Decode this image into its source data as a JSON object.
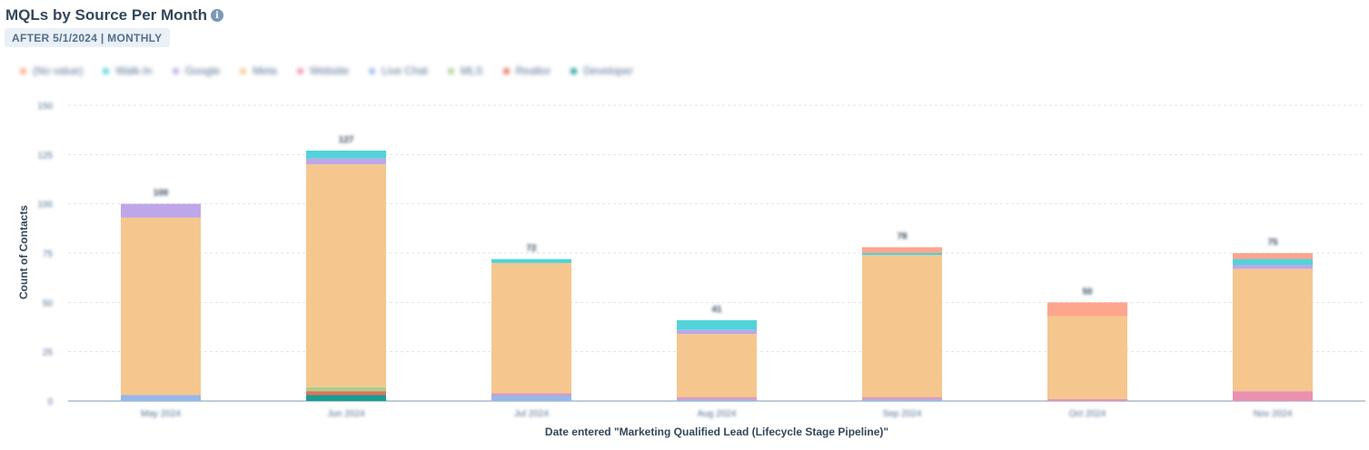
{
  "header": {
    "title": "MQLs by Source Per Month",
    "filter_badge": "AFTER 5/1/2024 | MONTHLY",
    "info_icon": "info-icon"
  },
  "chart_data": {
    "type": "bar",
    "stacked": true,
    "xlabel": "Date entered \"Marketing Qualified Lead (Lifecycle Stage Pipeline)\"",
    "ylabel": "Count of Contacts",
    "ylim": [
      0,
      150
    ],
    "yticks": [
      0,
      25,
      50,
      75,
      100,
      125,
      150
    ],
    "grid": true,
    "legend_position": "top-left",
    "categories": [
      "May 2024",
      "Jun 2024",
      "Jul 2024",
      "Aug 2024",
      "Sep 2024",
      "Oct 2024",
      "Nov 2024"
    ],
    "totals": [
      100,
      127,
      72,
      41,
      78,
      50,
      75
    ],
    "series": [
      {
        "name": "Developer",
        "color": "#1a9c92",
        "values": [
          0,
          3,
          0,
          0,
          0,
          0,
          0
        ]
      },
      {
        "name": "Realtor",
        "color": "#e0735a",
        "values": [
          0,
          2,
          0,
          0,
          0,
          0,
          0
        ]
      },
      {
        "name": "MLS",
        "color": "#a8d08d",
        "values": [
          0,
          2,
          0,
          0,
          0,
          0,
          0
        ]
      },
      {
        "name": "Live Chat",
        "color": "#97b7ea",
        "values": [
          3,
          0,
          3,
          1,
          1,
          0,
          0
        ]
      },
      {
        "name": "Website",
        "color": "#ea90b1",
        "values": [
          0,
          0,
          1,
          1,
          1,
          1,
          5
        ]
      },
      {
        "name": "Meta",
        "color": "#f5c78e",
        "values": [
          90,
          113,
          66,
          32,
          72,
          42,
          62
        ]
      },
      {
        "name": "Google",
        "color": "#bea7e8",
        "values": [
          7,
          3,
          0,
          2,
          0,
          0,
          2
        ]
      },
      {
        "name": "Walk-In",
        "color": "#51d3d9",
        "values": [
          0,
          4,
          2,
          5,
          1,
          0,
          3
        ]
      },
      {
        "name": "(No value)",
        "color": "#fea58e",
        "values": [
          0,
          0,
          0,
          0,
          3,
          7,
          3
        ]
      }
    ],
    "legend": [
      "(No value)",
      "Walk-In",
      "Google",
      "Meta",
      "Website",
      "Live Chat",
      "MLS",
      "Realtor",
      "Developer"
    ]
  }
}
